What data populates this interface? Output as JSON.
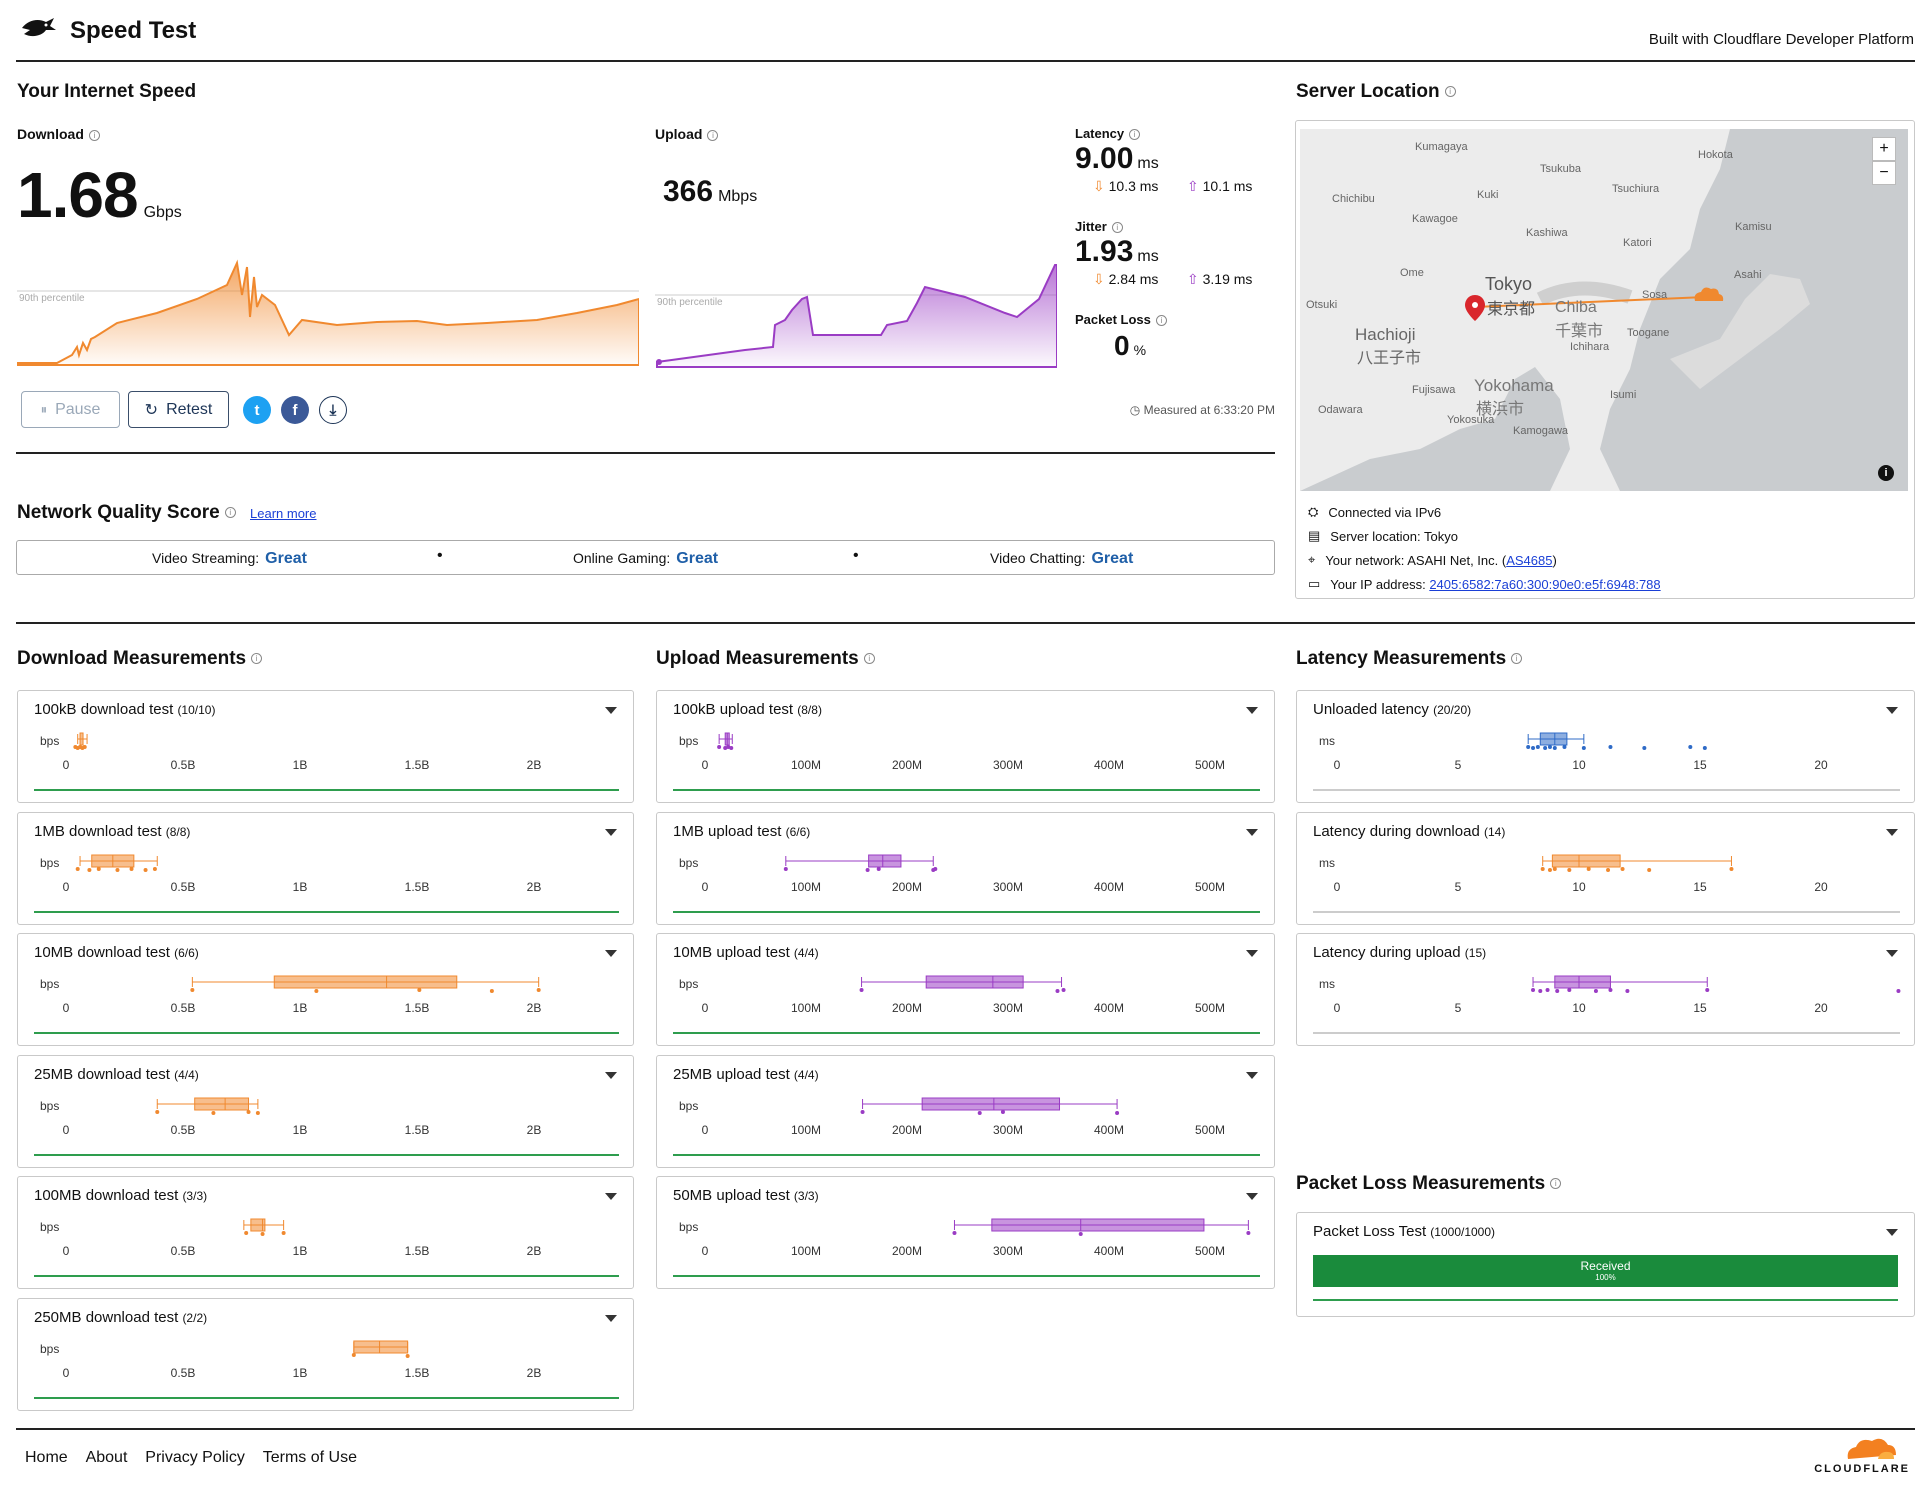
{
  "header": {
    "title": "Speed Test",
    "built_with": "Built with Cloudflare Developer Platform"
  },
  "speed": {
    "section_title": "Your Internet Speed",
    "download": {
      "label": "Download",
      "value": "1.68",
      "unit": "Gbps",
      "percentile_label": "90th percentile"
    },
    "upload": {
      "label": "Upload",
      "value": "366",
      "unit": "Mbps",
      "percentile_label": "90th percentile"
    },
    "latency": {
      "label": "Latency",
      "value": "9.00",
      "unit": "ms",
      "down": "10.3",
      "down_unit": "ms",
      "up": "10.1",
      "up_unit": "ms"
    },
    "jitter": {
      "label": "Jitter",
      "value": "1.93",
      "unit": "ms",
      "down": "2.84",
      "down_unit": "ms",
      "up": "3.19",
      "up_unit": "ms"
    },
    "packet_loss": {
      "label": "Packet Loss",
      "value": "0",
      "unit": "%"
    },
    "buttons": {
      "pause": "Pause",
      "retest": "Retest"
    },
    "measured_at": "Measured at 6:33:20 PM"
  },
  "nqs": {
    "title": "Network Quality Score",
    "learn_more": "Learn more",
    "items": [
      {
        "label": "Video Streaming:",
        "value": "Great"
      },
      {
        "label": "Online Gaming:",
        "value": "Great"
      },
      {
        "label": "Video Chatting:",
        "value": "Great"
      }
    ]
  },
  "server": {
    "title": "Server Location",
    "zoom_in": "+",
    "zoom_out": "−",
    "map_labels": {
      "tokyo": "Tokyo",
      "tokyo_jp": "東京都",
      "chiba": "Chiba",
      "chiba_jp": "千葉市",
      "hachioji": "Hachioji",
      "hachioji_jp": "八王子市",
      "yokohama": "Yokohama",
      "yokohama_jp": "横浜市",
      "kumagaya": "Kumagaya",
      "tsukuba": "Tsukuba",
      "kawagoe": "Kawagoe",
      "ome": "Ome",
      "otsuki": "Otsuki",
      "fujisawa": "Fujisawa",
      "odawara": "Odawara",
      "yokosuka": "Yokosuka",
      "kamogawa": "Kamogawa",
      "isumi": "Isumi",
      "ichihara": "Ichihara",
      "toogane": "Toogane",
      "sosa": "Sosa",
      "asahi": "Asahi",
      "katori": "Katori",
      "kashiwa": "Kashiwa",
      "tsuchiura": "Tsuchiura",
      "kuki": "Kuki",
      "chichibu": "Chichibu",
      "hokota": "Hokota",
      "kamisu": "Kamisu"
    },
    "connected": "Connected via IPv6",
    "location": "Server location: Tokyo",
    "network_prefix": "Your network: ASAHI Net, Inc. (",
    "network_as": "AS4685",
    "network_suffix": ")",
    "ip_prefix": "Your IP address: ",
    "ip": "2405:6582:7a60:300:90e0:e5f:6948:788"
  },
  "measurements": {
    "download_title": "Download Measurements",
    "upload_title": "Upload Measurements",
    "latency_title": "Latency Measurements",
    "packet_title": "Packet Loss Measurements",
    "download_axis": {
      "unit": "bps",
      "ticks": [
        "0",
        "0.5B",
        "1B",
        "1.5B",
        "2B"
      ]
    },
    "upload_axis": {
      "unit": "bps",
      "ticks": [
        "0",
        "100M",
        "200M",
        "300M",
        "400M",
        "500M"
      ]
    },
    "latency_axis": {
      "unit": "ms",
      "ticks": [
        "0",
        "5",
        "10",
        "15",
        "20"
      ]
    },
    "download": [
      {
        "name": "100kB download test",
        "count": "(10/10)"
      },
      {
        "name": "1MB download test",
        "count": "(8/8)"
      },
      {
        "name": "10MB download test",
        "count": "(6/6)"
      },
      {
        "name": "25MB download test",
        "count": "(4/4)"
      },
      {
        "name": "100MB download test",
        "count": "(3/3)"
      },
      {
        "name": "250MB download test",
        "count": "(2/2)"
      }
    ],
    "upload": [
      {
        "name": "100kB upload test",
        "count": "(8/8)"
      },
      {
        "name": "1MB upload test",
        "count": "(6/6)"
      },
      {
        "name": "10MB upload test",
        "count": "(4/4)"
      },
      {
        "name": "25MB upload test",
        "count": "(4/4)"
      },
      {
        "name": "50MB upload test",
        "count": "(3/3)"
      }
    ],
    "latency": [
      {
        "name": "Unloaded latency",
        "count": "(20/20)"
      },
      {
        "name": "Latency during download",
        "count": "(14)"
      },
      {
        "name": "Latency during upload",
        "count": "(15)"
      }
    ],
    "packet": {
      "name": "Packet Loss Test",
      "count": "(1000/1000)",
      "bar_label": "Received",
      "bar_value": "100%"
    }
  },
  "footer": {
    "links": [
      "Home",
      "About",
      "Privacy Policy",
      "Terms of Use"
    ],
    "brand": "CLOUDFLARE"
  },
  "colors": {
    "download": "#f0892f",
    "upload": "#9a3cc4",
    "latency": "#2f6bc7",
    "good": "#2e9d4e"
  }
}
